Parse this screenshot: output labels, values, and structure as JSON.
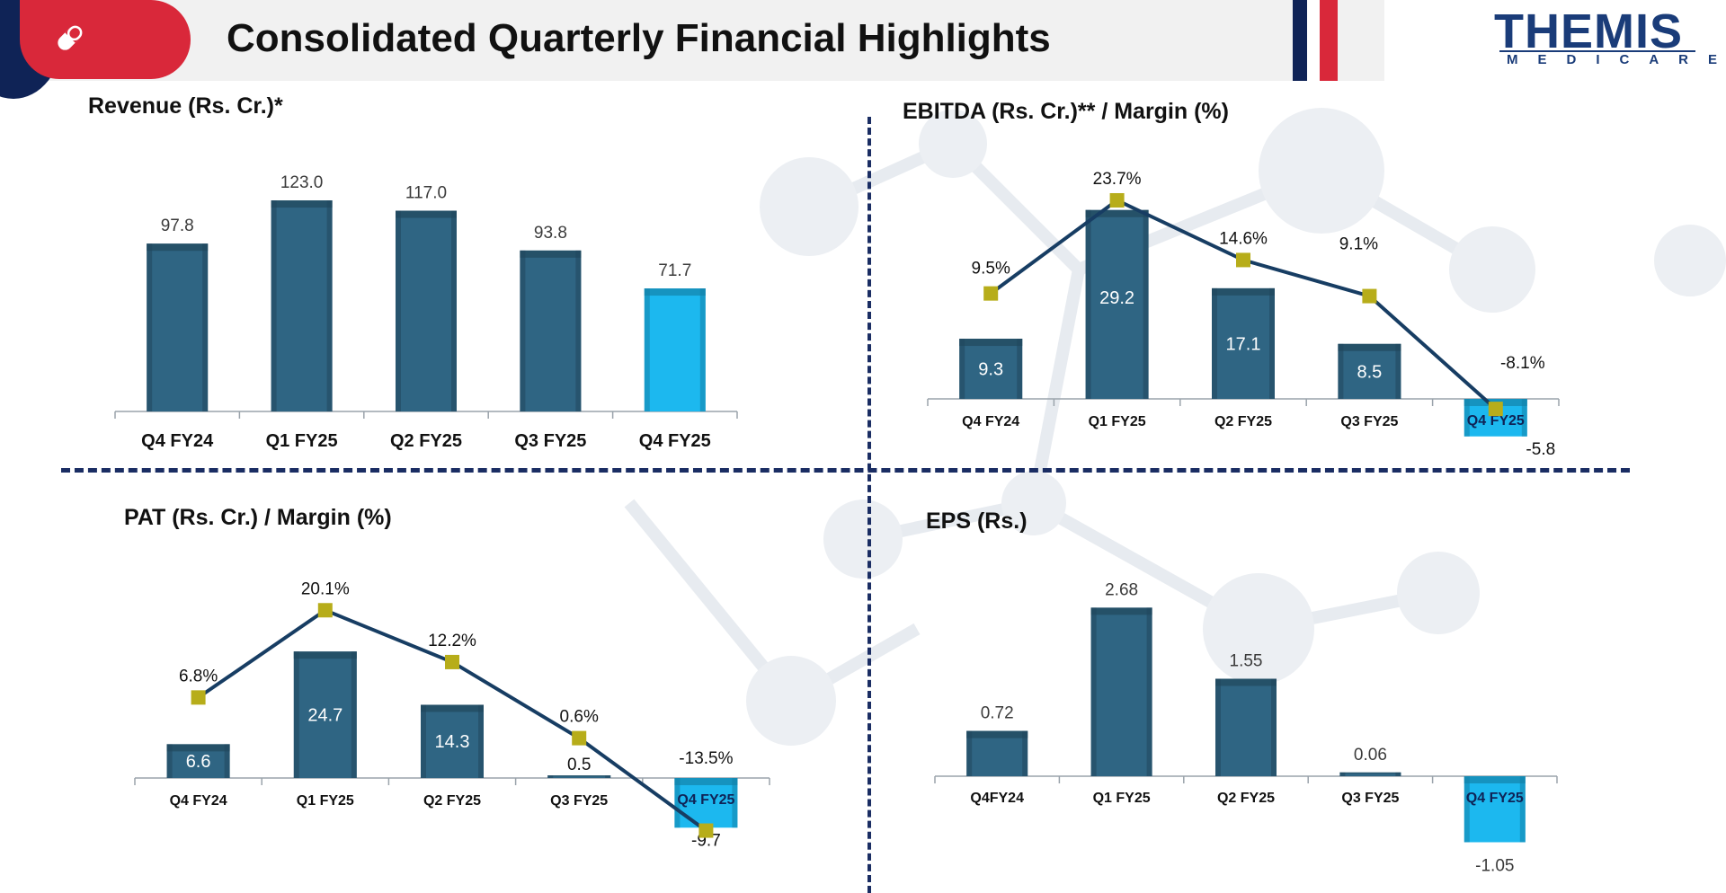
{
  "header": {
    "title": "Consolidated Quarterly Financial Highlights",
    "logo_main": "THEMIS",
    "logo_sub": "MEDICARE",
    "brand_colors": {
      "red": "#d9283a",
      "navy": "#0f2356"
    }
  },
  "chart_data": [
    {
      "id": "revenue",
      "type": "bar",
      "title": "Revenue (Rs. Cr.)*",
      "categories": [
        "Q4 FY24",
        "Q1 FY25",
        "Q2 FY25",
        "Q3 FY25",
        "Q4 FY25"
      ],
      "values": [
        97.8,
        123.0,
        117.0,
        93.8,
        71.7
      ],
      "value_labels": [
        "97.8",
        "123.0",
        "117.0",
        "93.8",
        "71.7"
      ],
      "ylim": [
        0,
        123
      ],
      "colors": {
        "bar": "#2f6583",
        "highlight": "#1cb8ef"
      }
    },
    {
      "id": "ebitda",
      "type": "bar",
      "title": "EBITDA (Rs. Cr.)** / Margin (%)",
      "categories": [
        "Q4 FY24",
        "Q1 FY25",
        "Q2 FY25",
        "Q3 FY25",
        "Q4 FY25"
      ],
      "values": [
        9.3,
        29.2,
        17.1,
        8.5,
        -5.8
      ],
      "value_labels": [
        "9.3",
        "29.2",
        "17.1",
        "8.5",
        "-5.8"
      ],
      "line": {
        "name": "Margin (%)",
        "values": [
          9.5,
          23.7,
          14.6,
          9.1,
          -8.1
        ],
        "labels": [
          "9.5%",
          "23.7%",
          "14.6%",
          "9.1%",
          "-8.1%"
        ]
      },
      "colors": {
        "bar": "#2f6583",
        "highlight": "#1cb8ef",
        "line": "#173d63",
        "marker": "#b7ad1a"
      }
    },
    {
      "id": "pat",
      "type": "bar",
      "title": "PAT (Rs. Cr.) / Margin (%)",
      "categories": [
        "Q4 FY24",
        "Q1 FY25",
        "Q2 FY25",
        "Q3 FY25",
        "Q4 FY25"
      ],
      "values": [
        6.6,
        24.7,
        14.3,
        0.5,
        -9.7
      ],
      "value_labels": [
        "6.6",
        "24.7",
        "14.3",
        "0.5",
        "-9.7"
      ],
      "line": {
        "name": "Margin (%)",
        "values": [
          6.8,
          20.1,
          12.2,
          0.6,
          -13.5
        ],
        "labels": [
          "6.8%",
          "20.1%",
          "12.2%",
          "0.6%",
          "-13.5%"
        ]
      },
      "colors": {
        "bar": "#2f6583",
        "highlight": "#1cb8ef",
        "line": "#173d63",
        "marker": "#b7ad1a"
      }
    },
    {
      "id": "eps",
      "type": "bar",
      "title": "EPS (Rs.)",
      "categories": [
        "Q4FY24",
        "Q1 FY25",
        "Q2 FY25",
        "Q3 FY25",
        "Q4 FY25"
      ],
      "values": [
        0.72,
        2.68,
        1.55,
        0.06,
        -1.05
      ],
      "value_labels": [
        "0.72",
        "2.68",
        "1.55",
        "0.06",
        "-1.05"
      ],
      "colors": {
        "bar": "#2f6583",
        "highlight": "#1cb8ef"
      }
    }
  ]
}
